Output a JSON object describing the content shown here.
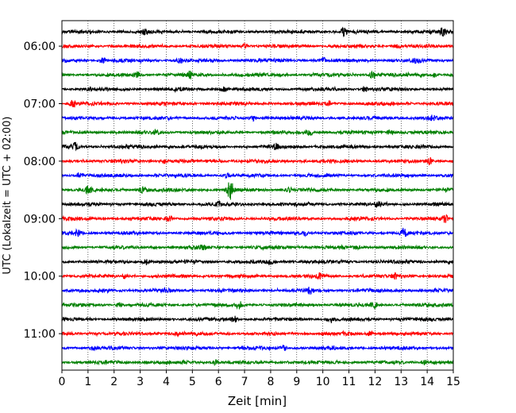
{
  "chart_data": {
    "type": "line",
    "title": "",
    "xlabel": "Zeit  [min]",
    "ylabel": "UTC (Lokalzeit = UTC + 02:00)",
    "xlim": [
      0,
      15
    ],
    "x_ticks": [
      "0",
      "1",
      "2",
      "3",
      "4",
      "5",
      "6",
      "7",
      "8",
      "9",
      "10",
      "11",
      "12",
      "13",
      "14",
      "15"
    ],
    "y_ticks": [
      "06:00",
      "07:00",
      "08:00",
      "09:00",
      "10:00",
      "11:00"
    ],
    "grid": "vertical dotted",
    "trace_interval_min": 15,
    "colors": [
      "#000000",
      "#ff0000",
      "#0000ff",
      "#008000"
    ],
    "series": [
      {
        "start": "05:45",
        "color": "#000000",
        "events": [
          [
            3.2,
            0.35
          ],
          [
            10.8,
            0.55
          ],
          [
            14.6,
            0.5
          ]
        ]
      },
      {
        "start": "06:00",
        "color": "#ff0000",
        "events": [
          [
            7.0,
            0.35
          ],
          [
            12.9,
            0.3
          ]
        ]
      },
      {
        "start": "06:15",
        "color": "#0000ff",
        "events": [
          [
            1.6,
            0.4
          ],
          [
            4.5,
            0.3
          ],
          [
            10.0,
            0.5
          ],
          [
            13.6,
            0.4
          ]
        ]
      },
      {
        "start": "06:30",
        "color": "#008000",
        "events": [
          [
            2.9,
            0.4
          ],
          [
            4.9,
            0.5
          ],
          [
            11.9,
            0.55
          ],
          [
            14.3,
            0.3
          ]
        ]
      },
      {
        "start": "06:45",
        "color": "#000000",
        "events": [
          [
            1.1,
            0.3
          ],
          [
            6.2,
            0.35
          ],
          [
            11.6,
            0.3
          ]
        ]
      },
      {
        "start": "07:00",
        "color": "#ff0000",
        "events": [
          [
            0.4,
            0.5
          ],
          [
            10.2,
            0.3
          ]
        ]
      },
      {
        "start": "07:15",
        "color": "#0000ff",
        "events": [
          [
            7.3,
            0.4
          ],
          [
            14.2,
            0.3
          ]
        ]
      },
      {
        "start": "07:30",
        "color": "#008000",
        "events": [
          [
            3.6,
            0.35
          ],
          [
            9.5,
            0.4
          ],
          [
            12.6,
            0.35
          ]
        ]
      },
      {
        "start": "07:45",
        "color": "#000000",
        "events": [
          [
            0.5,
            0.55
          ],
          [
            8.2,
            0.35
          ]
        ]
      },
      {
        "start": "08:00",
        "color": "#ff0000",
        "events": [
          [
            3.9,
            0.3
          ],
          [
            14.1,
            0.55
          ]
        ]
      },
      {
        "start": "08:15",
        "color": "#0000ff",
        "events": [
          [
            0.7,
            0.35
          ],
          [
            6.3,
            0.45
          ]
        ]
      },
      {
        "start": "08:30",
        "color": "#008000",
        "events": [
          [
            1.0,
            0.55
          ],
          [
            3.1,
            0.45
          ],
          [
            6.45,
            1.6
          ],
          [
            8.7,
            0.4
          ]
        ]
      },
      {
        "start": "08:45",
        "color": "#000000",
        "events": [
          [
            6.0,
            0.3
          ],
          [
            12.1,
            0.4
          ]
        ]
      },
      {
        "start": "09:00",
        "color": "#ff0000",
        "events": [
          [
            4.1,
            0.35
          ],
          [
            14.7,
            0.4
          ]
        ]
      },
      {
        "start": "09:15",
        "color": "#0000ff",
        "events": [
          [
            0.6,
            0.4
          ],
          [
            13.1,
            0.7
          ],
          [
            9.3,
            0.35
          ]
        ]
      },
      {
        "start": "09:30",
        "color": "#008000",
        "events": [
          [
            5.4,
            0.3
          ],
          [
            11.3,
            0.35
          ]
        ]
      },
      {
        "start": "09:45",
        "color": "#000000",
        "events": [
          [
            3.2,
            0.45
          ],
          [
            8.0,
            0.3
          ]
        ]
      },
      {
        "start": "10:00",
        "color": "#ff0000",
        "events": [
          [
            2.4,
            0.35
          ],
          [
            9.9,
            0.35
          ],
          [
            12.8,
            0.3
          ]
        ]
      },
      {
        "start": "10:15",
        "color": "#0000ff",
        "events": [
          [
            4.0,
            0.3
          ],
          [
            9.5,
            0.4
          ]
        ]
      },
      {
        "start": "10:30",
        "color": "#008000",
        "events": [
          [
            2.2,
            0.35
          ],
          [
            6.8,
            0.55
          ],
          [
            12.0,
            0.35
          ]
        ]
      },
      {
        "start": "10:45",
        "color": "#000000",
        "events": [
          [
            6.6,
            0.5
          ],
          [
            10.3,
            0.3
          ]
        ]
      },
      {
        "start": "11:00",
        "color": "#ff0000",
        "events": [
          [
            4.4,
            0.3
          ],
          [
            11.8,
            0.3
          ]
        ]
      },
      {
        "start": "11:15",
        "color": "#0000ff",
        "events": [
          [
            1.2,
            0.4
          ],
          [
            8.5,
            0.35
          ]
        ]
      },
      {
        "start": "11:30",
        "color": "#008000",
        "events": [
          [
            5.9,
            0.3
          ],
          [
            13.9,
            0.3
          ]
        ]
      }
    ]
  }
}
